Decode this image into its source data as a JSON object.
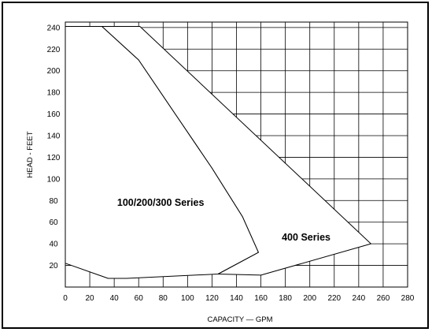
{
  "chart_data": {
    "type": "area",
    "title": "",
    "xlabel": "CAPACITY — GPM",
    "ylabel": "HEAD - FEET",
    "xlim": [
      0,
      280
    ],
    "ylim": [
      0,
      245
    ],
    "x_ticks": [
      "0",
      "20",
      "40",
      "60",
      "80",
      "100",
      "120",
      "140",
      "160",
      "180",
      "200",
      "220",
      "240",
      "260",
      "280"
    ],
    "y_ticks": [
      "20",
      "40",
      "60",
      "80",
      "100",
      "120",
      "140",
      "160",
      "180",
      "200",
      "220",
      "240"
    ],
    "grid": true,
    "series": [
      {
        "name": "100/200/300 Series",
        "boundary": [
          {
            "x": 0,
            "y": 241
          },
          {
            "x": 30,
            "y": 241
          },
          {
            "x": 60,
            "y": 210
          },
          {
            "x": 90,
            "y": 160
          },
          {
            "x": 120,
            "y": 110
          },
          {
            "x": 145,
            "y": 65
          },
          {
            "x": 158,
            "y": 32
          },
          {
            "x": 125,
            "y": 12
          },
          {
            "x": 50,
            "y": 8
          },
          {
            "x": 35,
            "y": 8
          },
          {
            "x": 0,
            "y": 22
          }
        ]
      },
      {
        "name": "400 Series",
        "boundary": [
          {
            "x": 30,
            "y": 241
          },
          {
            "x": 61,
            "y": 241
          },
          {
            "x": 250,
            "y": 40
          },
          {
            "x": 160,
            "y": 11
          },
          {
            "x": 125,
            "y": 12
          },
          {
            "x": 158,
            "y": 32
          },
          {
            "x": 145,
            "y": 65
          },
          {
            "x": 120,
            "y": 110
          },
          {
            "x": 90,
            "y": 160
          },
          {
            "x": 60,
            "y": 210
          }
        ]
      }
    ],
    "annotations": [
      "100/200/300 Series",
      "400 Series"
    ]
  }
}
